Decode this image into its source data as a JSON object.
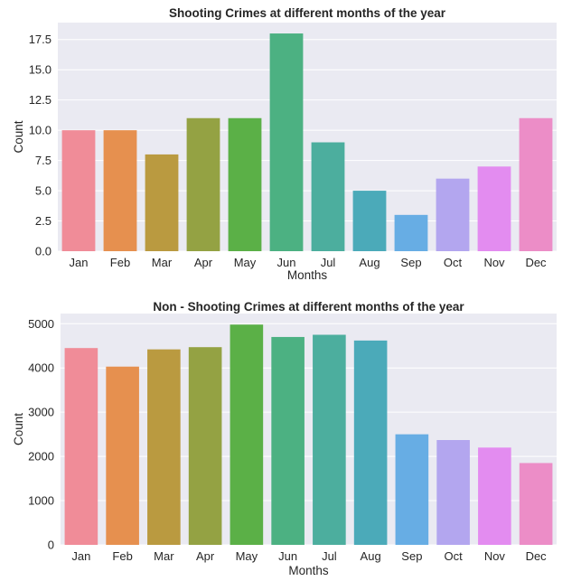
{
  "chart_data": [
    {
      "type": "bar",
      "title": "Shooting Crimes at different months of the year",
      "xlabel": "Months",
      "ylabel": "Count",
      "categories": [
        "Jan",
        "Feb",
        "Mar",
        "Apr",
        "May",
        "Jun",
        "Jul",
        "Aug",
        "Sep",
        "Oct",
        "Nov",
        "Dec"
      ],
      "values": [
        10,
        10,
        8,
        11,
        11,
        18,
        9,
        5,
        3,
        6,
        7,
        11
      ],
      "ylim": [
        0,
        18.9
      ],
      "yticks": [
        0,
        2.5,
        5,
        7.5,
        10,
        12.5,
        15,
        17.5
      ],
      "ytick_labels": [
        "0.0",
        "2.5",
        "5.0",
        "7.5",
        "10.0",
        "12.5",
        "15.0",
        "17.5"
      ],
      "grid": true,
      "colors": [
        "#f08c98",
        "#e6904f",
        "#ba9a40",
        "#94a243",
        "#5bb047",
        "#4cb182",
        "#4cae9e",
        "#4baab9",
        "#67ade4",
        "#b3a6ef",
        "#e38cf0",
        "#ec8dc7"
      ]
    },
    {
      "type": "bar",
      "title": "Non - Shooting Crimes at different months of the year",
      "xlabel": "Months",
      "ylabel": "Count",
      "categories": [
        "Jan",
        "Feb",
        "Mar",
        "Apr",
        "May",
        "Jun",
        "Jul",
        "Aug",
        "Sep",
        "Oct",
        "Nov",
        "Dec"
      ],
      "values": [
        4450,
        4030,
        4420,
        4470,
        4980,
        4700,
        4750,
        4620,
        2500,
        2370,
        2200,
        1850
      ],
      "ylim": [
        0,
        5230
      ],
      "yticks": [
        0,
        1000,
        2000,
        3000,
        4000,
        5000
      ],
      "ytick_labels": [
        "0",
        "1000",
        "2000",
        "3000",
        "4000",
        "5000"
      ],
      "grid": true,
      "colors": [
        "#f08c98",
        "#e6904f",
        "#ba9a40",
        "#94a243",
        "#5bb047",
        "#4cb182",
        "#4cae9e",
        "#4baab9",
        "#67ade4",
        "#b3a6ef",
        "#e38cf0",
        "#ec8dc7"
      ]
    }
  ]
}
